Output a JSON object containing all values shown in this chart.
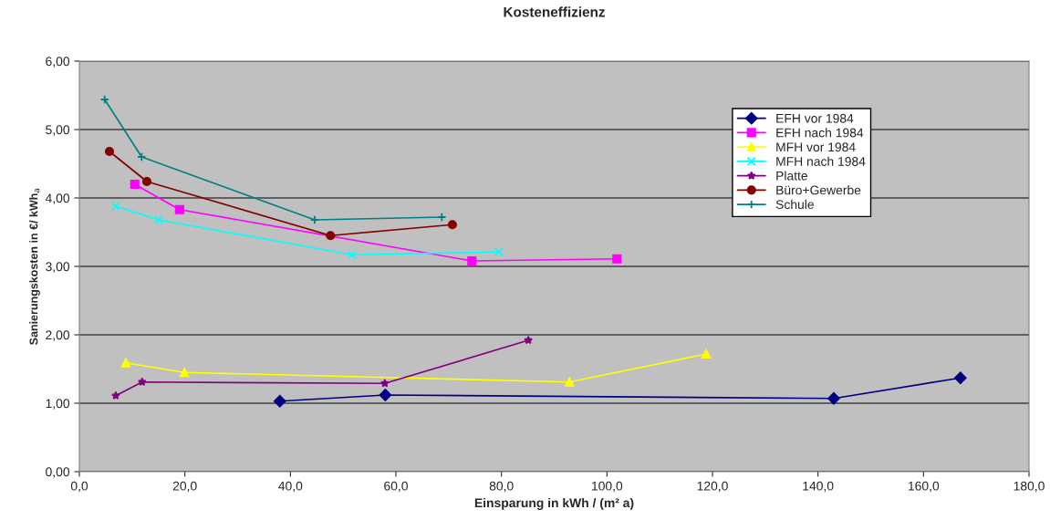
{
  "chart_data": {
    "type": "line",
    "title": "Kosteneffizienz",
    "xlabel": "Einsparung in kWh / (m² a)",
    "ylabel": "Sanierungskosten in €/ kWh$_{a}$",
    "xlim": [
      0,
      180
    ],
    "ylim": [
      0,
      6
    ],
    "xticks": [
      {
        "value": 0,
        "label": "0,0"
      },
      {
        "value": 20,
        "label": "20,0"
      },
      {
        "value": 40,
        "label": "40,0"
      },
      {
        "value": 60,
        "label": "60,0"
      },
      {
        "value": 80,
        "label": "80,0"
      },
      {
        "value": 100,
        "label": "100,0"
      },
      {
        "value": 120,
        "label": "120,0"
      },
      {
        "value": 140,
        "label": "140,0"
      },
      {
        "value": 160,
        "label": "160,0"
      },
      {
        "value": 180,
        "label": "180,0"
      }
    ],
    "yticks": [
      {
        "value": 0,
        "label": "0,00"
      },
      {
        "value": 1,
        "label": "1,00"
      },
      {
        "value": 2,
        "label": "2,00"
      },
      {
        "value": 3,
        "label": "3,00"
      },
      {
        "value": 4,
        "label": "4,00"
      },
      {
        "value": 5,
        "label": "5,00"
      },
      {
        "value": 6,
        "label": "6,00"
      }
    ],
    "grid": "y",
    "legend": "top right",
    "series": [
      {
        "name": "EFH vor 1984",
        "color": "#000080",
        "marker": "diamond",
        "x": [
          38,
          58,
          143,
          167
        ],
        "values": [
          1.03,
          1.12,
          1.07,
          1.37
        ]
      },
      {
        "name": "EFH nach 1984",
        "color": "#ff00ff",
        "marker": "square",
        "x": [
          10.5,
          19,
          74.4,
          101.9
        ],
        "values": [
          4.2,
          3.83,
          3.08,
          3.11
        ]
      },
      {
        "name": "MFH vor 1984",
        "color": "#ffff00",
        "marker": "triangle",
        "x": [
          8.8,
          19.9,
          92.9,
          118.8
        ],
        "values": [
          1.59,
          1.45,
          1.31,
          1.72
        ]
      },
      {
        "name": "MFH nach 1984",
        "color": "#00ffff",
        "marker": "cross",
        "x": [
          6.9,
          15,
          51.7,
          79.5
        ],
        "values": [
          3.88,
          3.68,
          3.17,
          3.21
        ]
      },
      {
        "name": "Platte",
        "color": "#800080",
        "marker": "star",
        "x": [
          6.9,
          11.9,
          57.9,
          85.1
        ],
        "values": [
          1.11,
          1.31,
          1.29,
          1.92
        ]
      },
      {
        "name": "Büro+Gewerbe",
        "color": "#800000",
        "marker": "circle",
        "x": [
          5.7,
          12.8,
          47.6,
          70.7
        ],
        "values": [
          4.68,
          4.24,
          3.45,
          3.61
        ]
      },
      {
        "name": "Schule",
        "color": "#008080",
        "marker": "plus",
        "x": [
          4.8,
          11.8,
          44.6,
          68.7
        ],
        "values": [
          5.44,
          4.6,
          3.68,
          3.72
        ]
      }
    ]
  }
}
